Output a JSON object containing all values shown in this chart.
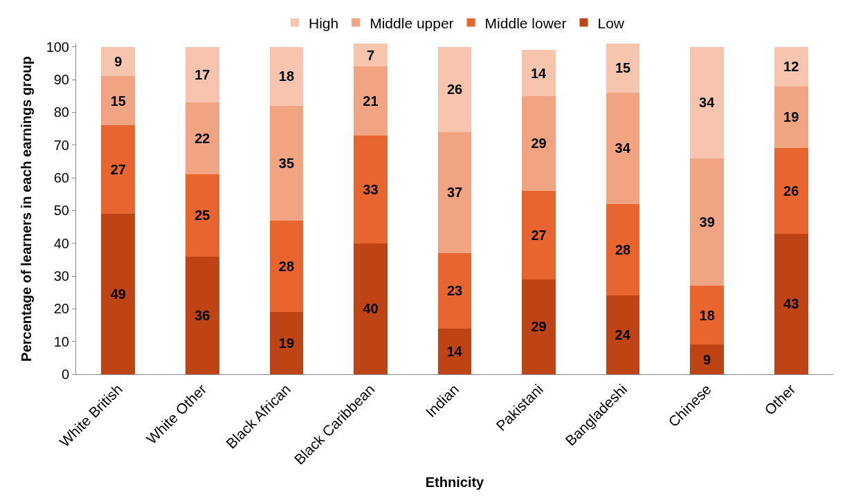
{
  "chart_data": {
    "type": "bar",
    "stacked": true,
    "xlabel": "Ethnicity",
    "ylabel": "Percentage of learners in each earnings group",
    "categories": [
      "White British",
      "White Other",
      "Black African",
      "Black Caribbean",
      "Indian",
      "Pakistani",
      "Bangladeshi",
      "Chinese",
      "Other"
    ],
    "series": [
      {
        "name": "Low",
        "color": "#be4415",
        "values": [
          49,
          36,
          19,
          40,
          14,
          29,
          24,
          9,
          43
        ]
      },
      {
        "name": "Middle lower",
        "color": "#e9652f",
        "values": [
          27,
          25,
          28,
          33,
          23,
          27,
          28,
          18,
          26
        ]
      },
      {
        "name": "Middle upper",
        "color": "#f0a482",
        "values": [
          15,
          22,
          35,
          21,
          37,
          29,
          34,
          39,
          19
        ]
      },
      {
        "name": "High",
        "color": "#f7c4ad",
        "values": [
          9,
          17,
          18,
          7,
          26,
          14,
          15,
          34,
          12
        ]
      }
    ],
    "ylim": [
      0,
      101
    ],
    "yticks": [
      0,
      10,
      20,
      30,
      40,
      50,
      60,
      70,
      80,
      90,
      100
    ],
    "data_labels": true,
    "grid": false,
    "legend": "top"
  }
}
